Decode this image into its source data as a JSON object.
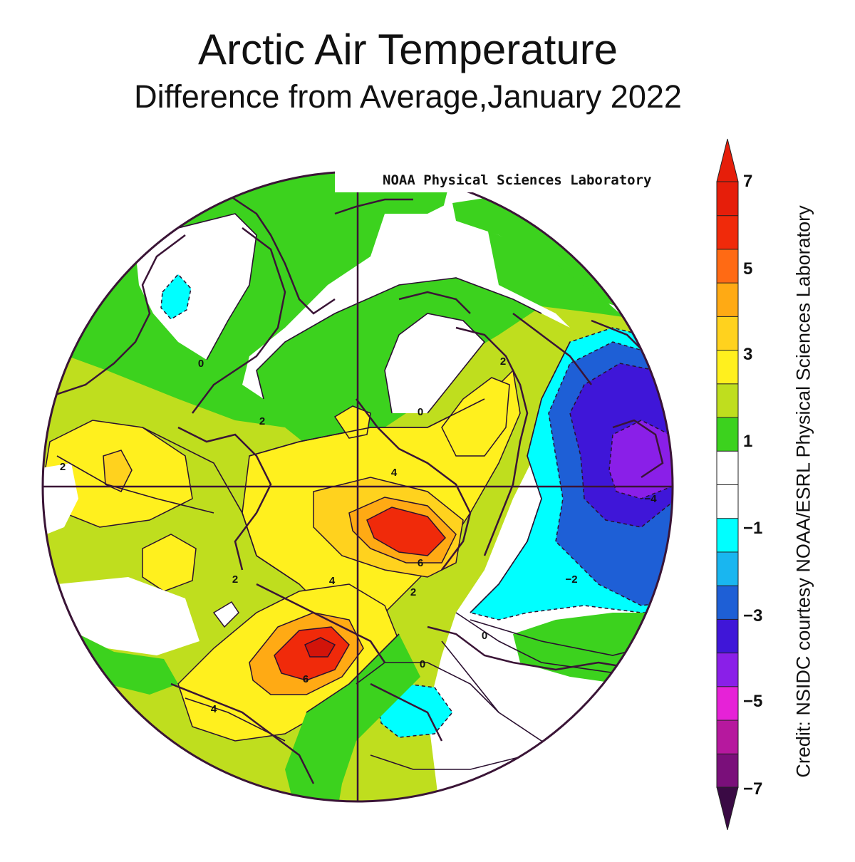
{
  "title": "Arctic Air Temperature",
  "subtitle": "Difference from Average,January 2022",
  "attribution": "NOAA Physical Sciences Laboratory",
  "credit": "Credit: NSIDC courtesy NOAA/ESRL Physical Sciences Laboratory",
  "colorbar": {
    "ticks": [
      "7",
      "5",
      "3",
      "1",
      "−1",
      "−3",
      "−5",
      "−7"
    ],
    "colors": [
      "#7a0f7a",
      "#b6189e",
      "#e622d7",
      "#8a1fe8",
      "#3f16d8",
      "#1e5fd6",
      "#19b6f0",
      "#00ffff",
      "#ffffff",
      "#ffffff",
      "#3cd21e",
      "#bfde1e",
      "#fff01e",
      "#ffd21e",
      "#ffaa14",
      "#ff6a14",
      "#f02a0a",
      "#e61e0a"
    ]
  },
  "contour_labels": [
    "0",
    "0",
    "0",
    "0",
    "2",
    "2",
    "2",
    "2",
    "2",
    "4",
    "4",
    "4",
    "6",
    "6",
    "−2",
    "−4"
  ],
  "legend_colors": {
    "plus_7": "#e61e0a",
    "plus_6": "#ff6a14",
    "plus_5": "#ffaa14",
    "plus_4": "#ffd21e",
    "plus_3": "#fff01e",
    "plus_2": "#bfde1e",
    "plus_1": "#3cd21e",
    "zero": "#ffffff",
    "minus_1": "#00ffff",
    "minus_2": "#1e5fd6",
    "minus_3": "#3f16d8",
    "minus_4": "#8a1fe8",
    "minus_5": "#e622d7",
    "minus_7": "#7a0f7a"
  }
}
